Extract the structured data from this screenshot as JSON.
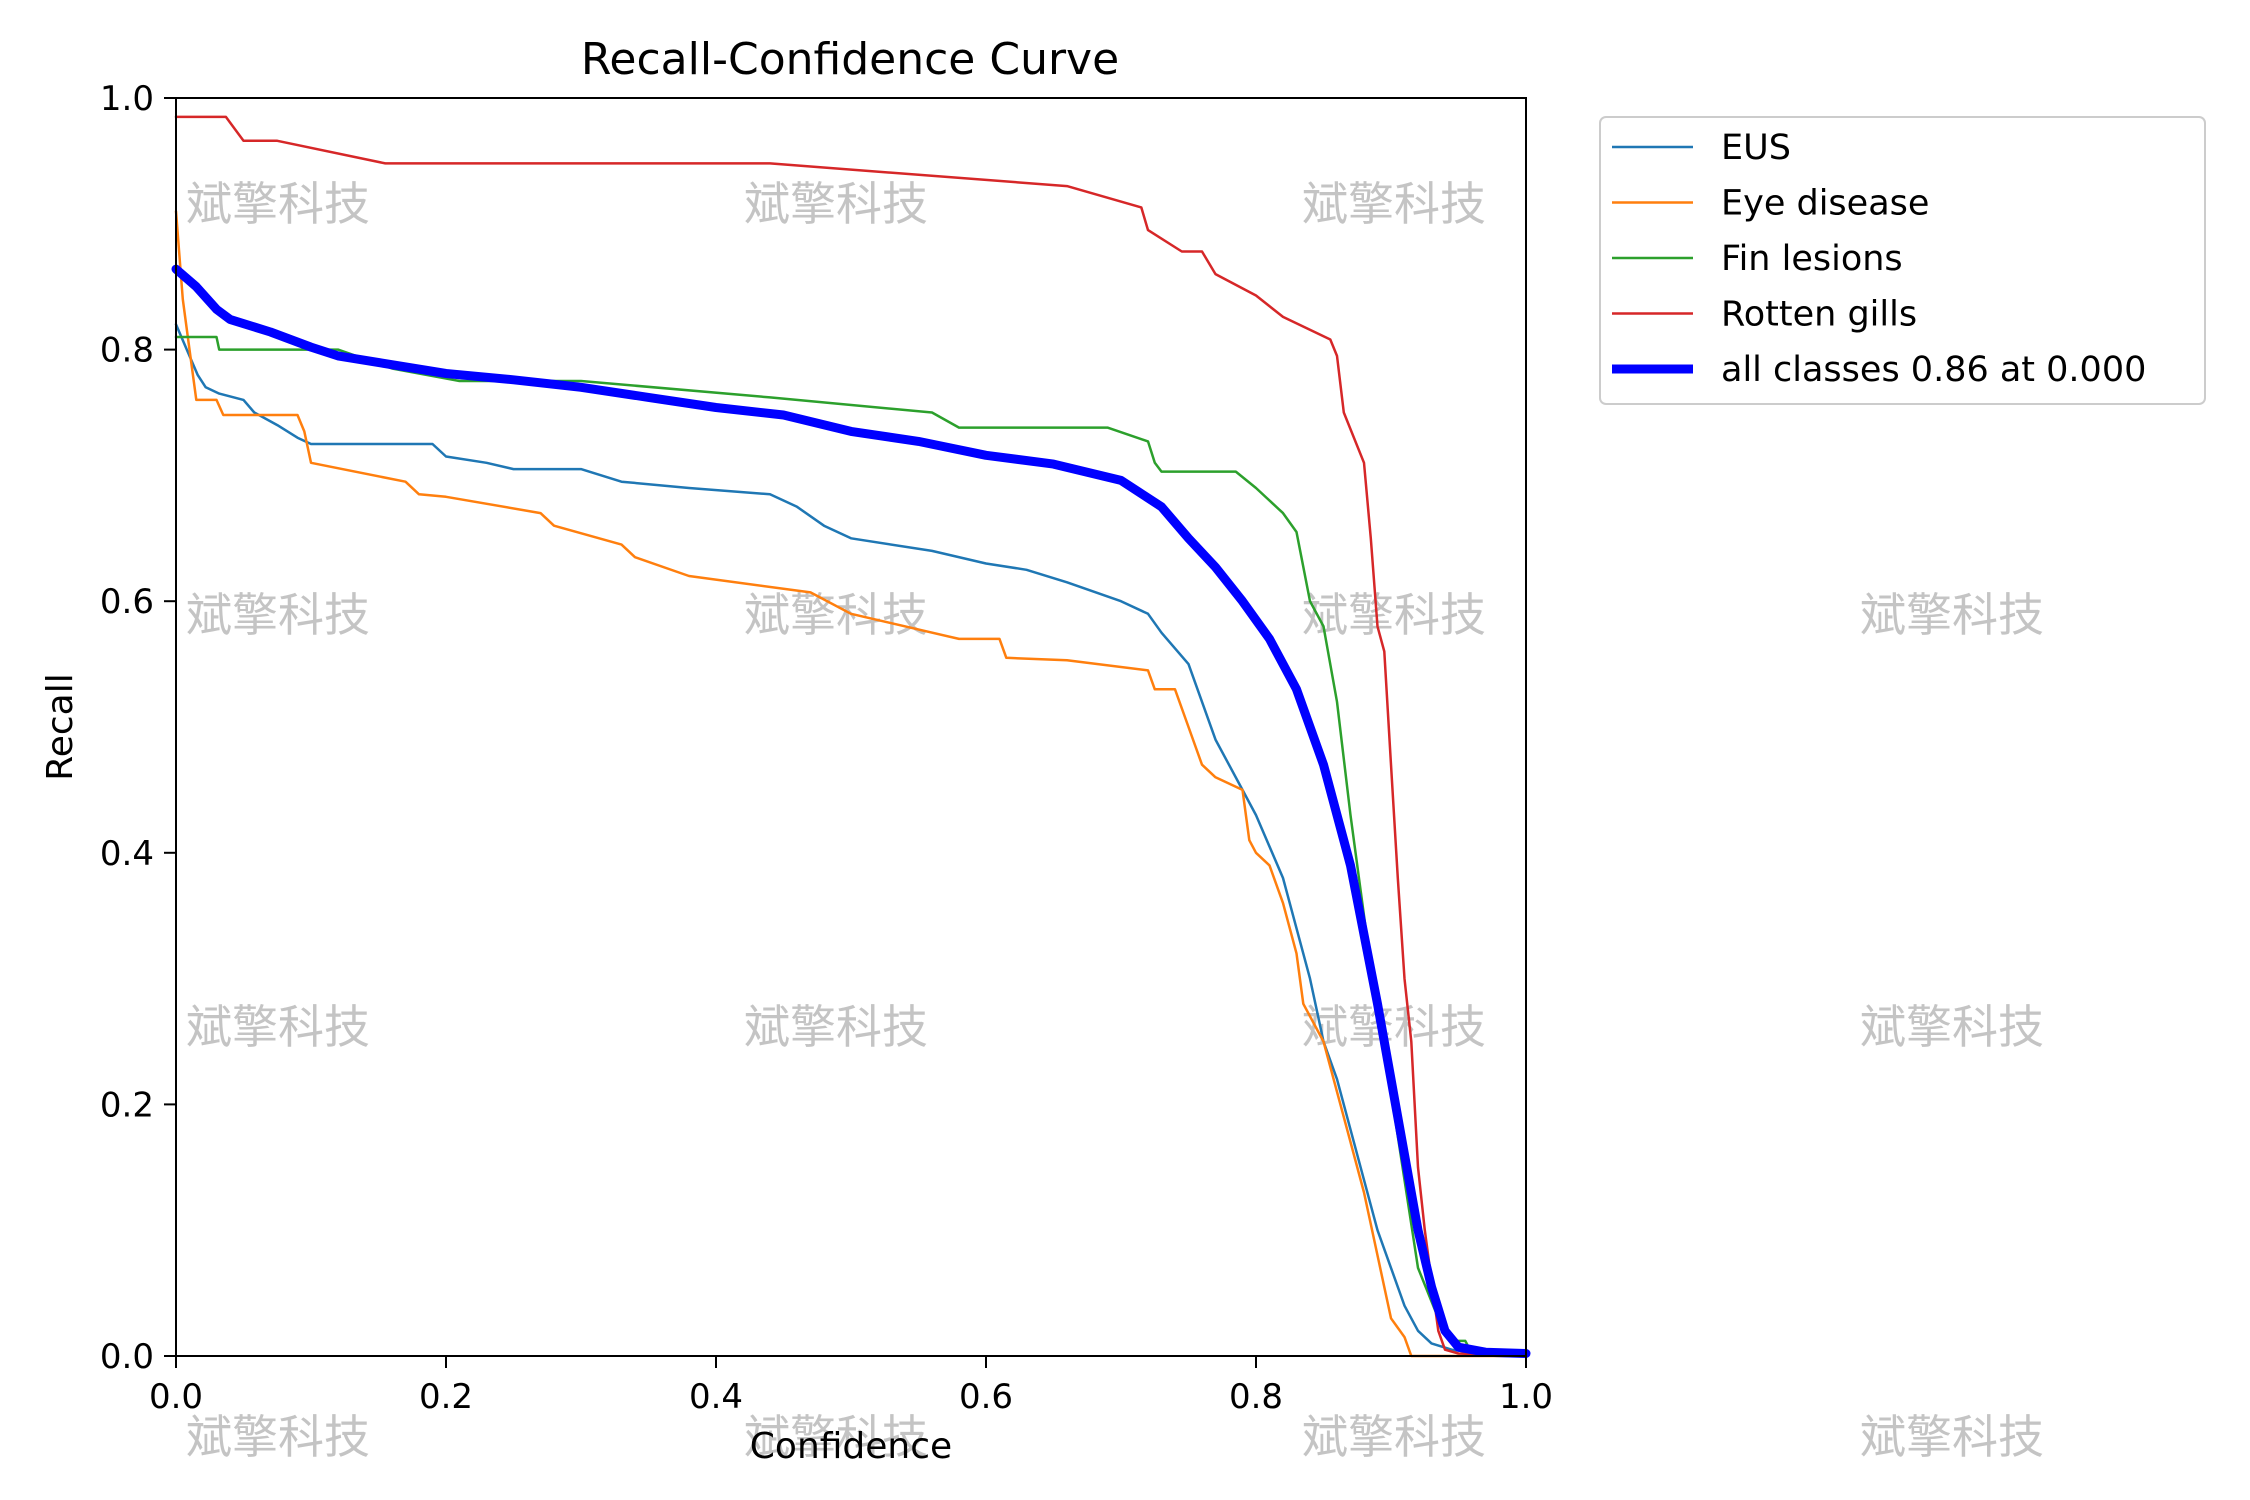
{
  "chart_data": {
    "type": "line",
    "title": "Recall-Confidence Curve",
    "xlabel": "Confidence",
    "ylabel": "Recall",
    "xlim": [
      0,
      1
    ],
    "ylim": [
      0,
      1
    ],
    "xticks": [
      "0.0",
      "0.2",
      "0.4",
      "0.6",
      "0.8",
      "1.0"
    ],
    "yticks": [
      "0.0",
      "0.2",
      "0.4",
      "0.6",
      "0.8",
      "1.0"
    ],
    "legend_position": "outside-top-right",
    "watermark": "斌擎科技",
    "series": [
      {
        "name": "EUS",
        "color": "#1f77b4",
        "width": "thin",
        "points": [
          [
            0,
            0.82
          ],
          [
            0.008,
            0.8
          ],
          [
            0.016,
            0.78
          ],
          [
            0.022,
            0.77
          ],
          [
            0.032,
            0.765
          ],
          [
            0.05,
            0.76
          ],
          [
            0.058,
            0.75
          ],
          [
            0.075,
            0.74
          ],
          [
            0.09,
            0.73
          ],
          [
            0.1,
            0.725
          ],
          [
            0.19,
            0.725
          ],
          [
            0.2,
            0.715
          ],
          [
            0.23,
            0.71
          ],
          [
            0.25,
            0.705
          ],
          [
            0.3,
            0.705
          ],
          [
            0.33,
            0.695
          ],
          [
            0.38,
            0.69
          ],
          [
            0.44,
            0.685
          ],
          [
            0.46,
            0.675
          ],
          [
            0.48,
            0.66
          ],
          [
            0.5,
            0.65
          ],
          [
            0.56,
            0.64
          ],
          [
            0.6,
            0.63
          ],
          [
            0.63,
            0.625
          ],
          [
            0.66,
            0.615
          ],
          [
            0.7,
            0.6
          ],
          [
            0.72,
            0.59
          ],
          [
            0.73,
            0.575
          ],
          [
            0.75,
            0.55
          ],
          [
            0.76,
            0.52
          ],
          [
            0.77,
            0.49
          ],
          [
            0.79,
            0.45
          ],
          [
            0.8,
            0.43
          ],
          [
            0.82,
            0.38
          ],
          [
            0.83,
            0.34
          ],
          [
            0.84,
            0.3
          ],
          [
            0.85,
            0.25
          ],
          [
            0.86,
            0.22
          ],
          [
            0.87,
            0.18
          ],
          [
            0.88,
            0.14
          ],
          [
            0.89,
            0.1
          ],
          [
            0.9,
            0.07
          ],
          [
            0.91,
            0.04
          ],
          [
            0.92,
            0.02
          ],
          [
            0.93,
            0.01
          ],
          [
            0.945,
            0.005
          ],
          [
            0.96,
            0.003
          ],
          [
            1.0,
            0.002
          ]
        ]
      },
      {
        "name": "Eye disease",
        "color": "#ff7f0e",
        "width": "thin",
        "points": [
          [
            0,
            0.91
          ],
          [
            0.005,
            0.84
          ],
          [
            0.01,
            0.8
          ],
          [
            0.015,
            0.76
          ],
          [
            0.03,
            0.76
          ],
          [
            0.035,
            0.748
          ],
          [
            0.09,
            0.748
          ],
          [
            0.095,
            0.735
          ],
          [
            0.1,
            0.71
          ],
          [
            0.17,
            0.695
          ],
          [
            0.18,
            0.685
          ],
          [
            0.2,
            0.683
          ],
          [
            0.27,
            0.67
          ],
          [
            0.28,
            0.66
          ],
          [
            0.33,
            0.645
          ],
          [
            0.34,
            0.635
          ],
          [
            0.38,
            0.62
          ],
          [
            0.47,
            0.607
          ],
          [
            0.5,
            0.59
          ],
          [
            0.58,
            0.57
          ],
          [
            0.61,
            0.57
          ],
          [
            0.615,
            0.555
          ],
          [
            0.66,
            0.553
          ],
          [
            0.72,
            0.545
          ],
          [
            0.725,
            0.53
          ],
          [
            0.74,
            0.53
          ],
          [
            0.75,
            0.5
          ],
          [
            0.76,
            0.47
          ],
          [
            0.77,
            0.46
          ],
          [
            0.79,
            0.45
          ],
          [
            0.795,
            0.41
          ],
          [
            0.8,
            0.4
          ],
          [
            0.81,
            0.39
          ],
          [
            0.82,
            0.36
          ],
          [
            0.83,
            0.32
          ],
          [
            0.835,
            0.28
          ],
          [
            0.85,
            0.25
          ],
          [
            0.86,
            0.21
          ],
          [
            0.87,
            0.17
          ],
          [
            0.88,
            0.13
          ],
          [
            0.89,
            0.08
          ],
          [
            0.9,
            0.03
          ],
          [
            0.91,
            0.015
          ],
          [
            0.915,
            0.0
          ],
          [
            1.0,
            0.0
          ]
        ]
      },
      {
        "name": "Fin lesions",
        "color": "#2ca02c",
        "width": "thin",
        "points": [
          [
            0,
            0.81
          ],
          [
            0.03,
            0.81
          ],
          [
            0.032,
            0.8
          ],
          [
            0.12,
            0.8
          ],
          [
            0.16,
            0.785
          ],
          [
            0.21,
            0.775
          ],
          [
            0.3,
            0.775
          ],
          [
            0.44,
            0.762
          ],
          [
            0.56,
            0.75
          ],
          [
            0.58,
            0.738
          ],
          [
            0.69,
            0.738
          ],
          [
            0.72,
            0.727
          ],
          [
            0.725,
            0.71
          ],
          [
            0.73,
            0.703
          ],
          [
            0.785,
            0.703
          ],
          [
            0.8,
            0.69
          ],
          [
            0.82,
            0.67
          ],
          [
            0.83,
            0.655
          ],
          [
            0.84,
            0.6
          ],
          [
            0.85,
            0.58
          ],
          [
            0.86,
            0.52
          ],
          [
            0.87,
            0.43
          ],
          [
            0.88,
            0.35
          ],
          [
            0.89,
            0.27
          ],
          [
            0.9,
            0.21
          ],
          [
            0.91,
            0.14
          ],
          [
            0.92,
            0.07
          ],
          [
            0.935,
            0.03
          ],
          [
            0.945,
            0.012
          ],
          [
            0.955,
            0.012
          ],
          [
            0.96,
            0.002
          ],
          [
            1.0,
            0.001
          ]
        ]
      },
      {
        "name": "Rotten gills",
        "color": "#d62728",
        "width": "thin",
        "points": [
          [
            0,
            0.985
          ],
          [
            0.037,
            0.985
          ],
          [
            0.05,
            0.966
          ],
          [
            0.075,
            0.966
          ],
          [
            0.155,
            0.948
          ],
          [
            0.44,
            0.948
          ],
          [
            0.66,
            0.93
          ],
          [
            0.715,
            0.913
          ],
          [
            0.72,
            0.895
          ],
          [
            0.745,
            0.878
          ],
          [
            0.76,
            0.878
          ],
          [
            0.77,
            0.86
          ],
          [
            0.8,
            0.843
          ],
          [
            0.82,
            0.826
          ],
          [
            0.855,
            0.808
          ],
          [
            0.86,
            0.795
          ],
          [
            0.865,
            0.75
          ],
          [
            0.88,
            0.71
          ],
          [
            0.885,
            0.65
          ],
          [
            0.89,
            0.58
          ],
          [
            0.895,
            0.56
          ],
          [
            0.9,
            0.47
          ],
          [
            0.905,
            0.38
          ],
          [
            0.91,
            0.3
          ],
          [
            0.915,
            0.25
          ],
          [
            0.92,
            0.15
          ],
          [
            0.925,
            0.1
          ],
          [
            0.93,
            0.06
          ],
          [
            0.935,
            0.02
          ],
          [
            0.94,
            0.005
          ],
          [
            0.95,
            0.002
          ],
          [
            1.0,
            0.0
          ]
        ]
      },
      {
        "name": "all classes 0.86 at 0.000",
        "color": "#0000ff",
        "width": "thick",
        "points": [
          [
            0,
            0.864
          ],
          [
            0.015,
            0.85
          ],
          [
            0.03,
            0.832
          ],
          [
            0.04,
            0.824
          ],
          [
            0.07,
            0.814
          ],
          [
            0.1,
            0.802
          ],
          [
            0.12,
            0.795
          ],
          [
            0.2,
            0.781
          ],
          [
            0.25,
            0.776
          ],
          [
            0.3,
            0.77
          ],
          [
            0.35,
            0.762
          ],
          [
            0.4,
            0.754
          ],
          [
            0.45,
            0.748
          ],
          [
            0.5,
            0.735
          ],
          [
            0.55,
            0.727
          ],
          [
            0.6,
            0.716
          ],
          [
            0.65,
            0.709
          ],
          [
            0.7,
            0.696
          ],
          [
            0.73,
            0.675
          ],
          [
            0.75,
            0.65
          ],
          [
            0.77,
            0.627
          ],
          [
            0.79,
            0.6
          ],
          [
            0.81,
            0.57
          ],
          [
            0.83,
            0.53
          ],
          [
            0.85,
            0.47
          ],
          [
            0.87,
            0.39
          ],
          [
            0.89,
            0.28
          ],
          [
            0.9,
            0.22
          ],
          [
            0.91,
            0.16
          ],
          [
            0.92,
            0.1
          ],
          [
            0.93,
            0.055
          ],
          [
            0.94,
            0.02
          ],
          [
            0.95,
            0.007
          ],
          [
            0.97,
            0.003
          ],
          [
            1.0,
            0.002
          ]
        ]
      }
    ]
  }
}
